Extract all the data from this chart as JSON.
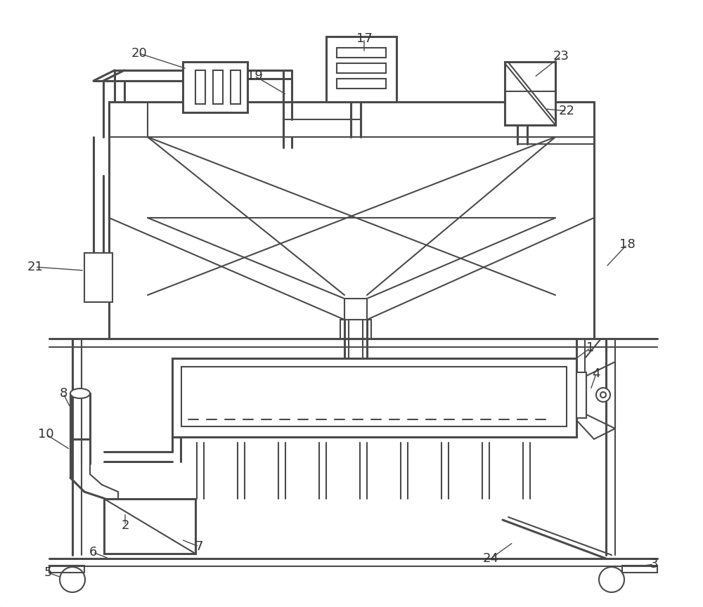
{
  "bg": "#ffffff",
  "lc": "#4a4a4a",
  "lw": 1.5,
  "lw2": 2.2,
  "fs": 13,
  "fc": "#333333"
}
